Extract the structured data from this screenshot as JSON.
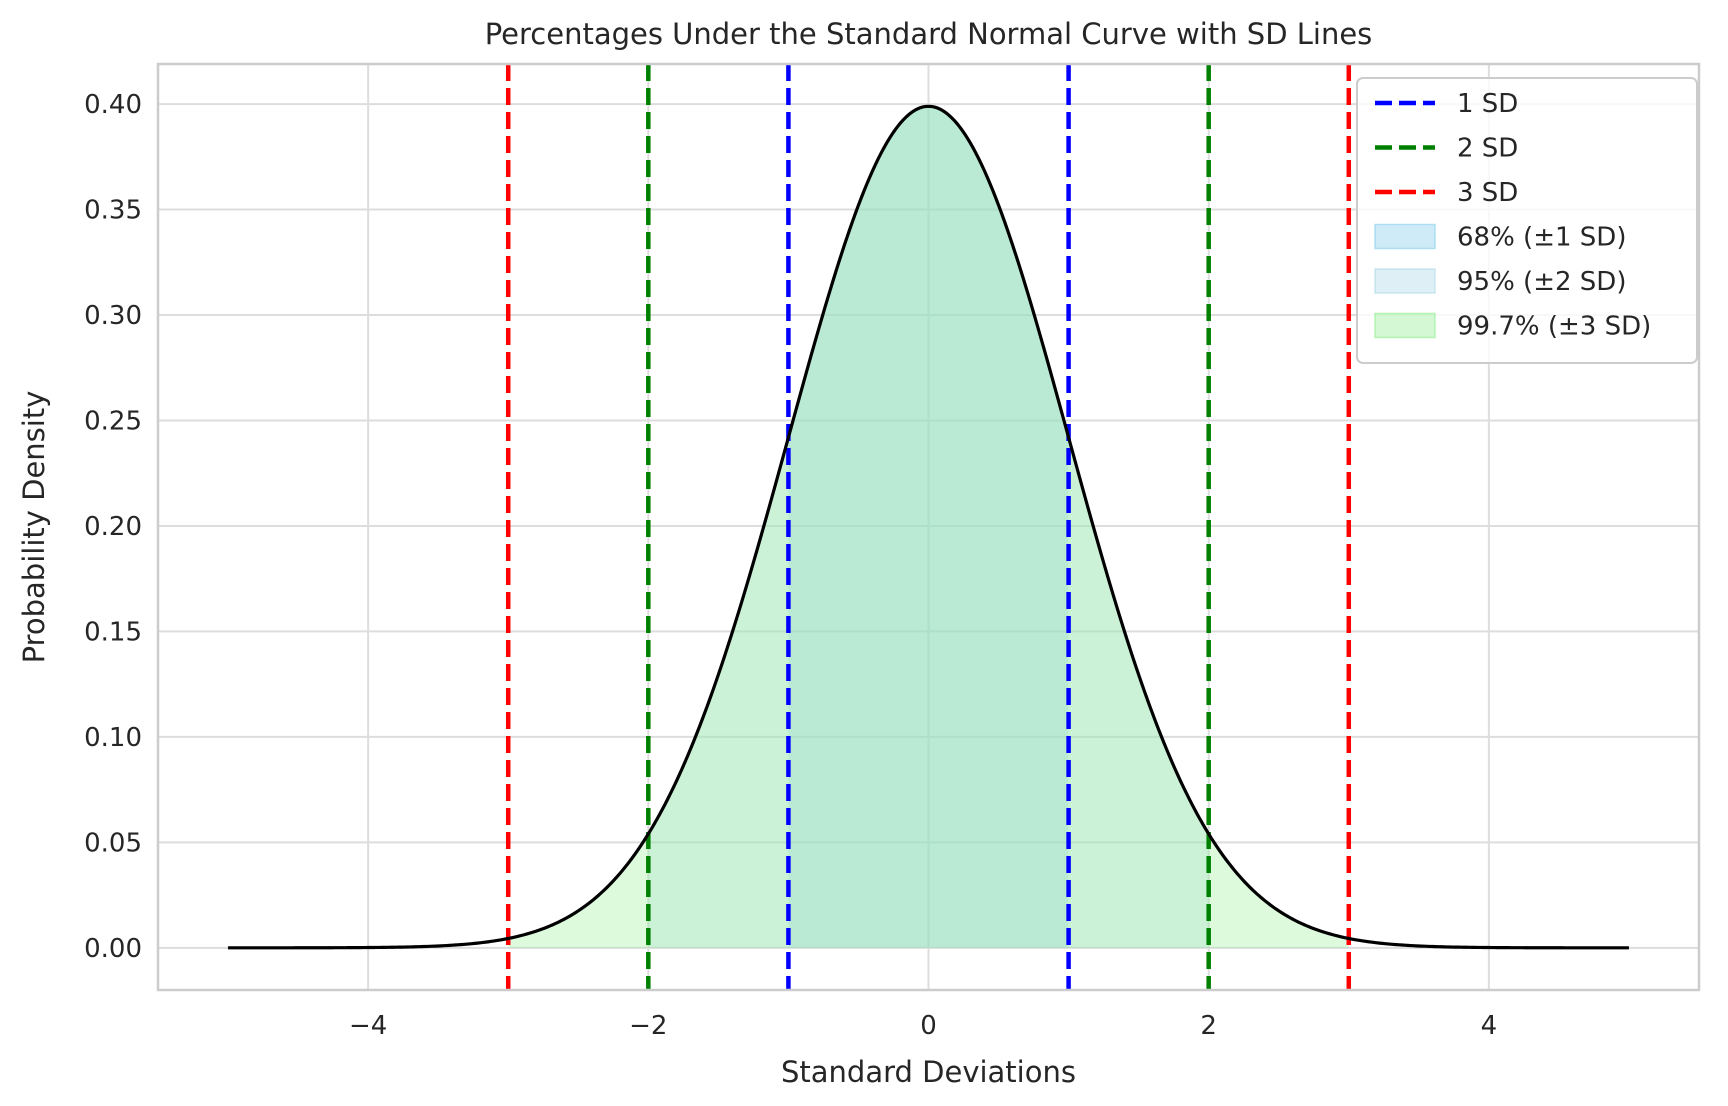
{
  "chart_data": {
    "type": "line",
    "title": "Percentages Under the Standard Normal Curve with SD Lines",
    "xlabel": "Standard Deviations",
    "ylabel": "Probability Density",
    "xlim": [
      -5.5,
      5.5
    ],
    "ylim": [
      -0.02,
      0.419
    ],
    "x_ticks": [
      -4,
      -2,
      0,
      2,
      4
    ],
    "x_tick_labels": [
      "−4",
      "−2",
      "0",
      "2",
      "4"
    ],
    "y_ticks": [
      0.0,
      0.05,
      0.1,
      0.15,
      0.2,
      0.25,
      0.3,
      0.35,
      0.4
    ],
    "y_tick_labels": [
      "0.00",
      "0.05",
      "0.10",
      "0.15",
      "0.20",
      "0.25",
      "0.30",
      "0.35",
      "0.40"
    ],
    "grid": true,
    "legend_position": "top-right",
    "curve": {
      "name": "Standard normal density",
      "x_range": [
        -5,
        5
      ],
      "mean": 0,
      "sd": 1,
      "color": "#000000"
    },
    "sd_lines": [
      {
        "label": "1 SD",
        "x": [
          -1,
          1
        ],
        "color": "#0000ff"
      },
      {
        "label": "2 SD",
        "x": [
          -2,
          2
        ],
        "color": "#008000"
      },
      {
        "label": "3 SD",
        "x": [
          -3,
          3
        ],
        "color": "#ff0000"
      }
    ],
    "shaded_regions": [
      {
        "label": "68% (±1 SD)",
        "from": -1,
        "to": 1,
        "color": "#87ceeb",
        "opacity": 0.3
      },
      {
        "label": "95% (±2 SD)",
        "from": -2,
        "to": 2,
        "color": "#add8e6",
        "opacity": 0.3
      },
      {
        "label": "99.7% (±3 SD)",
        "from": -3,
        "to": 3,
        "color": "#90ee90",
        "opacity": 0.3
      }
    ]
  }
}
